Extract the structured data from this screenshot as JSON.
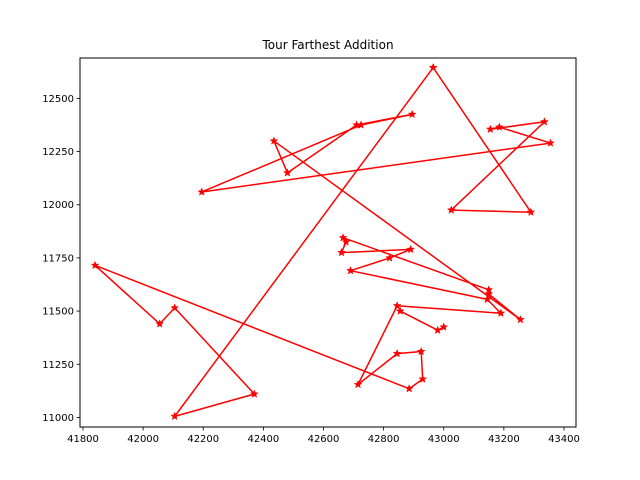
{
  "chart_data": {
    "type": "line",
    "title": "Tour Farthest Addition",
    "xlabel": "",
    "ylabel": "",
    "xlim": [
      41790,
      43440
    ],
    "ylim": [
      10955,
      12690
    ],
    "xticks": [
      41800,
      42000,
      42200,
      42400,
      42600,
      42800,
      43000,
      43200,
      43400
    ],
    "yticks": [
      11000,
      11250,
      11500,
      11750,
      12000,
      12250,
      12500
    ],
    "grid": false,
    "line_color": "#ff0000",
    "marker": "star",
    "series": [
      {
        "name": "",
        "points": [
          [
            42965,
            12645
          ],
          [
            42105,
            11005
          ],
          [
            42370,
            11110
          ],
          [
            42105,
            11515
          ],
          [
            42055,
            11440
          ],
          [
            41840,
            11715
          ],
          [
            42885,
            11135
          ],
          [
            42930,
            11180
          ],
          [
            42925,
            11310
          ],
          [
            42845,
            11300
          ],
          [
            42715,
            11155
          ],
          [
            42845,
            11525
          ],
          [
            43190,
            11490
          ],
          [
            43145,
            11555
          ],
          [
            42690,
            11690
          ],
          [
            42820,
            11750
          ],
          [
            42890,
            11790
          ],
          [
            42660,
            11775
          ],
          [
            42675,
            11825
          ],
          [
            42665,
            11845
          ],
          [
            43150,
            11600
          ],
          [
            43150,
            11580
          ],
          [
            43255,
            11460
          ],
          [
            42435,
            12300
          ],
          [
            42480,
            12150
          ],
          [
            42710,
            12375
          ],
          [
            42895,
            12425
          ],
          [
            42725,
            12375
          ],
          [
            42195,
            12060
          ],
          [
            43355,
            12290
          ],
          [
            43185,
            12365
          ],
          [
            43155,
            12355
          ],
          [
            43335,
            12390
          ],
          [
            43025,
            11975
          ],
          [
            43290,
            11965
          ],
          [
            42965,
            12645
          ]
        ]
      },
      {
        "name": "",
        "points": [
          [
            42855,
            11500
          ],
          [
            42980,
            11410
          ],
          [
            43000,
            11425
          ]
        ]
      }
    ]
  }
}
